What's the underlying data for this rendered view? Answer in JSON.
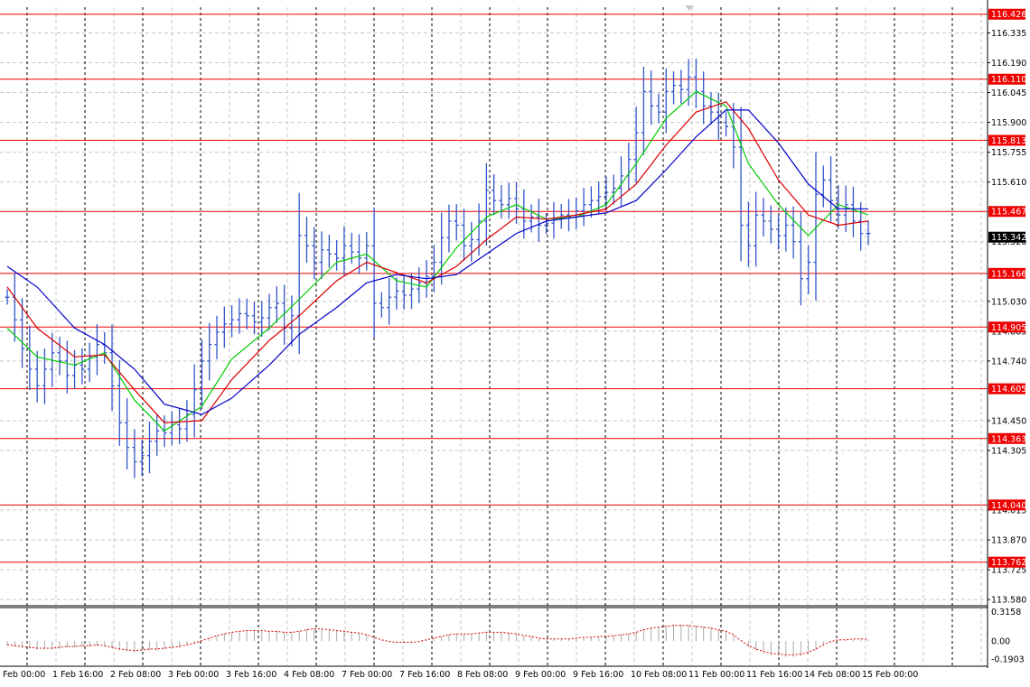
{
  "colors": {
    "background": "#ffffff",
    "grid": "#c8c8c8",
    "grid_vertical_major": "#000000",
    "price_bars": "#3355cc",
    "ma_fast": "#00cc00",
    "ma_mid": "#dd0000",
    "ma_slow": "#0000cc",
    "level_lines": "#ee0000",
    "level_tag_bg": "#ee0000",
    "current_price_tag_bg": "#000000",
    "oscillator_hist": "#aaaaaa",
    "oscillator_signal": "#dd0000"
  },
  "chart_data": [
    {
      "type": "line",
      "title": "",
      "xlabel": "",
      "ylabel": "",
      "ylim": [
        113.55,
        116.46
      ],
      "grid": true,
      "price_scale_labels": [
        "116.335",
        "116.190",
        "116.045",
        "115.900",
        "115.755",
        "115.610",
        "115.320",
        "115.030",
        "114.885",
        "114.740",
        "114.450",
        "114.305",
        "114.015",
        "113.870",
        "113.725",
        "113.580"
      ],
      "time_labels": [
        "1 Feb 00:00",
        "1 Feb 16:00",
        "2 Feb 08:00",
        "3 Feb 00:00",
        "3 Feb 16:00",
        "4 Feb 08:00",
        "7 Feb 00:00",
        "7 Feb 16:00",
        "8 Feb 08:00",
        "9 Feb 00:00",
        "9 Feb 16:00",
        "10 Feb 08:00",
        "11 Feb 00:00",
        "11 Feb 16:00",
        "14 Feb 08:00",
        "15 Feb 00:00"
      ],
      "levels": [
        "116.426",
        "116.110",
        "115.813",
        "115.467",
        "115.166",
        "114.905",
        "114.605",
        "114.363",
        "114.040",
        "113.762"
      ],
      "current_price": "115.342",
      "series": [
        {
          "role": "price",
          "points": [
            [
              0,
              115.05
            ],
            [
              1,
              114.94
            ],
            [
              2,
              114.8
            ],
            [
              3,
              114.7
            ],
            [
              4,
              114.62
            ],
            [
              5,
              114.7
            ],
            [
              6,
              114.78
            ],
            [
              7,
              114.74
            ],
            [
              8,
              114.67
            ],
            [
              9,
              114.72
            ],
            [
              10,
              114.7
            ],
            [
              11,
              114.76
            ],
            [
              12,
              114.82
            ],
            [
              13,
              114.78
            ],
            [
              14,
              114.62
            ],
            [
              15,
              114.44
            ],
            [
              16,
              114.32
            ],
            [
              17,
              114.25
            ],
            [
              18,
              114.28
            ],
            [
              19,
              114.35
            ],
            [
              20,
              114.4
            ],
            [
              21,
              114.39
            ],
            [
              22,
              114.43
            ],
            [
              23,
              114.41
            ],
            [
              24,
              114.48
            ],
            [
              25,
              114.6
            ],
            [
              26,
              114.74
            ],
            [
              27,
              114.82
            ],
            [
              28,
              114.88
            ],
            [
              29,
              114.92
            ],
            [
              30,
              114.94
            ],
            [
              31,
              114.97
            ],
            [
              32,
              114.96
            ],
            [
              33,
              114.93
            ],
            [
              34,
              114.95
            ],
            [
              35,
              115.0
            ],
            [
              36,
              115.02
            ],
            [
              37,
              114.9
            ],
            [
              38,
              114.96
            ],
            [
              39,
              115.35
            ],
            [
              40,
              115.3
            ],
            [
              41,
              115.22
            ],
            [
              42,
              115.28
            ],
            [
              43,
              115.26
            ],
            [
              44,
              115.24
            ],
            [
              45,
              115.3
            ],
            [
              46,
              115.27
            ],
            [
              47,
              115.24
            ],
            [
              48,
              115.3
            ],
            [
              49,
              115.02
            ],
            [
              50,
              115.0
            ],
            [
              51,
              115.05
            ],
            [
              52,
              115.08
            ],
            [
              53,
              115.06
            ],
            [
              54,
              115.09
            ],
            [
              55,
              115.12
            ],
            [
              56,
              115.15
            ],
            [
              57,
              115.22
            ],
            [
              58,
              115.34
            ],
            [
              59,
              115.42
            ],
            [
              60,
              115.4
            ],
            [
              61,
              115.3
            ],
            [
              62,
              115.33
            ],
            [
              63,
              115.42
            ],
            [
              64,
              115.57
            ],
            [
              65,
              115.52
            ],
            [
              66,
              115.5
            ],
            [
              67,
              115.53
            ],
            [
              68,
              115.48
            ],
            [
              69,
              115.42
            ],
            [
              70,
              115.44
            ],
            [
              71,
              115.4
            ],
            [
              72,
              115.41
            ],
            [
              73,
              115.43
            ],
            [
              74,
              115.45
            ],
            [
              75,
              115.44
            ],
            [
              76,
              115.47
            ],
            [
              77,
              115.5
            ],
            [
              78,
              115.52
            ],
            [
              79,
              115.54
            ],
            [
              80,
              115.56
            ],
            [
              81,
              115.58
            ],
            [
              82,
              115.64
            ],
            [
              83,
              115.72
            ],
            [
              84,
              115.85
            ],
            [
              85,
              116.05
            ],
            [
              86,
              115.98
            ],
            [
              87,
              115.95
            ],
            [
              88,
              116.05
            ],
            [
              89,
              116.08
            ],
            [
              90,
              116.06
            ],
            [
              91,
              116.12
            ],
            [
              92,
              116.05
            ],
            [
              93,
              115.98
            ],
            [
              94,
              115.95
            ],
            [
              95,
              115.9
            ],
            [
              96,
              115.88
            ],
            [
              97,
              115.78
            ],
            [
              98,
              115.4
            ],
            [
              99,
              115.3
            ],
            [
              100,
              115.45
            ],
            [
              101,
              115.42
            ],
            [
              102,
              115.38
            ],
            [
              103,
              115.35
            ],
            [
              104,
              115.4
            ],
            [
              105,
              115.32
            ],
            [
              106,
              115.14
            ],
            [
              107,
              115.22
            ],
            [
              108,
              115.55
            ],
            [
              109,
              115.62
            ],
            [
              110,
              115.52
            ],
            [
              111,
              115.45
            ],
            [
              112,
              115.5
            ],
            [
              113,
              115.42
            ],
            [
              114,
              115.36
            ],
            [
              115,
              115.36
            ]
          ]
        },
        {
          "role": "ma_fast",
          "points": [
            [
              0,
              114.9
            ],
            [
              4,
              114.76
            ],
            [
              9,
              114.72
            ],
            [
              13,
              114.78
            ],
            [
              17,
              114.55
            ],
            [
              21,
              114.4
            ],
            [
              26,
              114.52
            ],
            [
              30,
              114.75
            ],
            [
              35,
              114.9
            ],
            [
              39,
              115.04
            ],
            [
              44,
              115.22
            ],
            [
              48,
              115.26
            ],
            [
              52,
              115.13
            ],
            [
              56,
              115.1
            ],
            [
              60,
              115.29
            ],
            [
              64,
              115.44
            ],
            [
              68,
              115.5
            ],
            [
              72,
              115.43
            ],
            [
              76,
              115.44
            ],
            [
              80,
              115.5
            ],
            [
              84,
              115.7
            ],
            [
              88,
              115.92
            ],
            [
              92,
              116.05
            ],
            [
              96,
              115.98
            ],
            [
              99,
              115.7
            ],
            [
              103,
              115.5
            ],
            [
              107,
              115.35
            ],
            [
              111,
              115.5
            ],
            [
              115,
              115.45
            ]
          ]
        },
        {
          "role": "ma_mid",
          "points": [
            [
              0,
              115.1
            ],
            [
              4,
              114.9
            ],
            [
              9,
              114.76
            ],
            [
              13,
              114.77
            ],
            [
              17,
              114.6
            ],
            [
              21,
              114.44
            ],
            [
              26,
              114.45
            ],
            [
              30,
              114.65
            ],
            [
              35,
              114.84
            ],
            [
              39,
              114.96
            ],
            [
              44,
              115.13
            ],
            [
              48,
              115.22
            ],
            [
              52,
              115.17
            ],
            [
              56,
              115.12
            ],
            [
              60,
              115.2
            ],
            [
              64,
              115.33
            ],
            [
              68,
              115.44
            ],
            [
              72,
              115.43
            ],
            [
              76,
              115.45
            ],
            [
              80,
              115.48
            ],
            [
              84,
              115.6
            ],
            [
              88,
              115.79
            ],
            [
              92,
              115.95
            ],
            [
              96,
              116.0
            ],
            [
              99,
              115.87
            ],
            [
              103,
              115.62
            ],
            [
              107,
              115.45
            ],
            [
              111,
              115.4
            ],
            [
              115,
              115.42
            ]
          ]
        },
        {
          "role": "ma_slow",
          "points": [
            [
              0,
              115.2
            ],
            [
              4,
              115.1
            ],
            [
              9,
              114.9
            ],
            [
              13,
              114.82
            ],
            [
              17,
              114.7
            ],
            [
              21,
              114.53
            ],
            [
              26,
              114.48
            ],
            [
              30,
              114.56
            ],
            [
              35,
              114.72
            ],
            [
              39,
              114.87
            ],
            [
              44,
              115.0
            ],
            [
              48,
              115.12
            ],
            [
              52,
              115.16
            ],
            [
              56,
              115.14
            ],
            [
              60,
              115.16
            ],
            [
              64,
              115.26
            ],
            [
              68,
              115.36
            ],
            [
              72,
              115.42
            ],
            [
              76,
              115.44
            ],
            [
              80,
              115.46
            ],
            [
              84,
              115.52
            ],
            [
              88,
              115.67
            ],
            [
              92,
              115.83
            ],
            [
              96,
              115.96
            ],
            [
              99,
              115.96
            ],
            [
              103,
              115.8
            ],
            [
              107,
              115.6
            ],
            [
              111,
              115.48
            ],
            [
              115,
              115.48
            ]
          ]
        }
      ]
    },
    {
      "type": "bar",
      "title": "",
      "ylim": [
        -0.26,
        0.36
      ],
      "scale_labels": [
        "0.3158",
        "0.00",
        "-0.1903"
      ],
      "values": [
        -0.05,
        -0.06,
        -0.07,
        -0.08,
        -0.09,
        -0.09,
        -0.09,
        -0.08,
        -0.07,
        -0.07,
        -0.06,
        -0.06,
        -0.05,
        -0.06,
        -0.08,
        -0.1,
        -0.11,
        -0.12,
        -0.11,
        -0.1,
        -0.1,
        -0.09,
        -0.08,
        -0.07,
        -0.05,
        -0.03,
        0.0,
        0.03,
        0.06,
        0.08,
        0.1,
        0.11,
        0.12,
        0.12,
        0.12,
        0.11,
        0.11,
        0.1,
        0.1,
        0.11,
        0.13,
        0.14,
        0.14,
        0.13,
        0.12,
        0.11,
        0.1,
        0.09,
        0.07,
        0.04,
        0.01,
        -0.01,
        -0.02,
        -0.02,
        -0.02,
        -0.01,
        0.01,
        0.03,
        0.05,
        0.07,
        0.08,
        0.08,
        0.08,
        0.09,
        0.1,
        0.1,
        0.1,
        0.09,
        0.08,
        0.06,
        0.05,
        0.03,
        0.02,
        0.02,
        0.02,
        0.02,
        0.03,
        0.04,
        0.04,
        0.05,
        0.05,
        0.06,
        0.07,
        0.08,
        0.1,
        0.13,
        0.15,
        0.16,
        0.17,
        0.18,
        0.18,
        0.18,
        0.17,
        0.16,
        0.15,
        0.13,
        0.11,
        0.07,
        0.0,
        -0.06,
        -0.1,
        -0.13,
        -0.15,
        -0.16,
        -0.17,
        -0.17,
        -0.16,
        -0.14,
        -0.1,
        -0.05,
        -0.01,
        0.01,
        0.01,
        0.02,
        0.02,
        0.02
      ]
    }
  ]
}
